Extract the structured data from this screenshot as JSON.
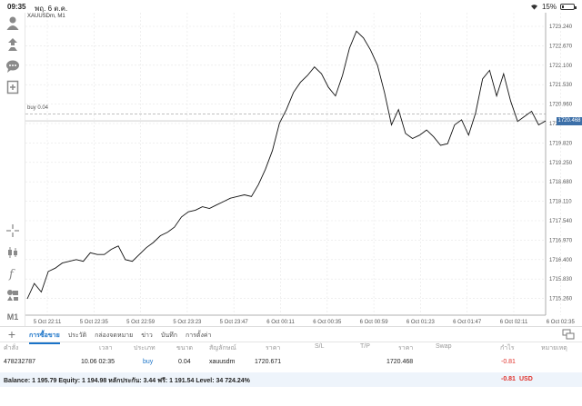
{
  "status_bar": {
    "time": "09:35",
    "date": "พฤ. 6 ต.ค.",
    "battery": "15%",
    "battery_level": 0.15
  },
  "chart": {
    "symbol": "XAUUSDm, M1",
    "buy_line_label": "buy 0.04",
    "current_price": "1720.468",
    "current_price_value": 1720.468,
    "buy_price_value": 1720.671
  },
  "chart_data": {
    "type": "line",
    "title": "XAUUSDm, M1",
    "y_ticks": [
      "1723.240",
      "1722.670",
      "1722.100",
      "1721.530",
      "1720.960",
      "1720.390",
      "1719.820",
      "1719.250",
      "1718.680",
      "1718.110",
      "1717.540",
      "1716.970",
      "1716.400",
      "1715.830",
      "1715.260"
    ],
    "x_ticks": [
      "5 Oct 22:11",
      "5 Oct 22:35",
      "5 Oct 22:59",
      "5 Oct 23:23",
      "5 Oct 23:47",
      "6 Oct 00:11",
      "6 Oct 00:35",
      "6 Oct 00:59",
      "6 Oct 01:23",
      "6 Oct 01:47",
      "6 Oct 02:11",
      "6 Oct 02:35"
    ],
    "ylim": [
      1714.9,
      1723.5
    ],
    "grid": true,
    "series": [
      {
        "values": [
          1715.25,
          1715.7,
          1715.45,
          1716.05,
          1716.15,
          1716.3,
          1716.35,
          1716.4,
          1716.35,
          1716.6,
          1716.55,
          1716.55,
          1716.7,
          1716.8,
          1716.4,
          1716.35,
          1716.55,
          1716.75,
          1716.9,
          1717.1,
          1717.2,
          1717.35,
          1717.65,
          1717.8,
          1717.85,
          1717.95,
          1717.9,
          1718.0,
          1718.1,
          1718.2,
          1718.25,
          1718.3,
          1718.25,
          1718.6,
          1719.05,
          1719.6,
          1720.4,
          1720.8,
          1721.3,
          1721.6,
          1721.8,
          1722.05,
          1721.85,
          1721.45,
          1721.2,
          1721.8,
          1722.6,
          1723.1,
          1722.9,
          1722.55,
          1722.1,
          1721.3,
          1720.35,
          1720.8,
          1720.1,
          1719.95,
          1720.05,
          1720.2,
          1720.0,
          1719.75,
          1719.8,
          1720.35,
          1720.5,
          1720.05,
          1720.7,
          1721.7,
          1721.95,
          1721.2,
          1721.85,
          1721.05,
          1720.45,
          1720.6,
          1720.75,
          1720.35,
          1720.468
        ]
      }
    ]
  },
  "tabs": [
    "การซื้อขาย",
    "ประวัติ",
    "กล่องจดหมาย",
    "ข่าว",
    "บันทึก",
    "การตั้งค่า"
  ],
  "table": {
    "headers": [
      "คำสั่ง",
      "เวลา",
      "ประเภท",
      "ขนาด",
      "สัญลักษณ์",
      "ราคา",
      "S/L",
      "T/P",
      "ราคา",
      "Swap",
      "กำไร",
      "หมายเหตุ"
    ],
    "rows": [
      [
        "478232787",
        "10.06 02:35",
        "buy",
        "0.04",
        "xauusdm",
        "1720.671",
        "",
        "",
        "1720.468",
        "",
        "-0.81",
        ""
      ]
    ]
  },
  "balance": {
    "text": "Balance: 1 195.79 Equity: 1 194.98 หลักประกัน: 3.44 ฟรี: 1 191.54 Level: 34 724.24%",
    "profit": "-0.81",
    "currency": "USD"
  },
  "colors": {
    "accent": "#1a73c8",
    "loss": "#e0312b",
    "price_tag": "#3c6fa8",
    "line": "#111111"
  }
}
